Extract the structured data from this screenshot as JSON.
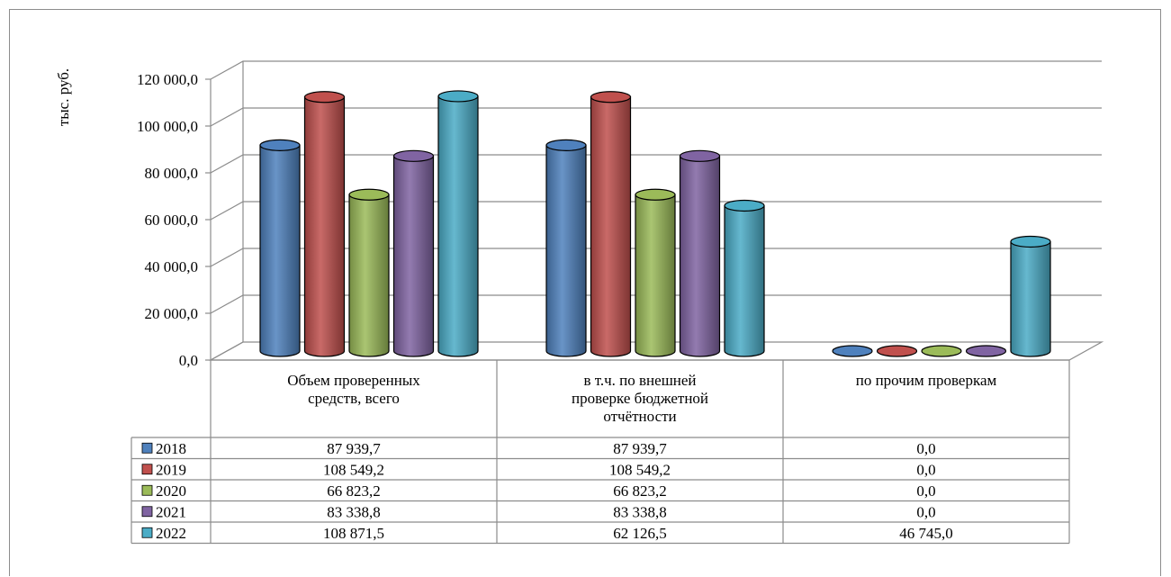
{
  "chart_data": {
    "type": "bar",
    "ylabel": "тыс. руб.",
    "ylim": [
      0,
      120000
    ],
    "y_ticks": [
      "0,0",
      "20 000,0",
      "40 000,0",
      "60 000,0",
      "80 000,0",
      "100 000,0",
      "120 000,0"
    ],
    "y_tick_values": [
      0,
      20000,
      40000,
      60000,
      80000,
      100000,
      120000
    ],
    "categories": [
      [
        "Объем проверенных",
        "средств, всего"
      ],
      [
        "в т.ч. по внешней",
        "проверке бюджетной",
        "отчётности"
      ],
      [
        "по прочим проверкам"
      ]
    ],
    "grid": true,
    "legend": "data-table",
    "series": [
      {
        "name": "2018",
        "color": "#4f81bd",
        "values": [
          87939.7,
          87939.7,
          0.0
        ],
        "labels": [
          "87 939,7",
          "87 939,7",
          "0,0"
        ]
      },
      {
        "name": "2019",
        "color": "#c0504d",
        "values": [
          108549.2,
          108549.2,
          0.0
        ],
        "labels": [
          "108 549,2",
          "108 549,2",
          "0,0"
        ]
      },
      {
        "name": "2020",
        "color": "#9bbb59",
        "values": [
          66823.2,
          66823.2,
          0.0
        ],
        "labels": [
          "66 823,2",
          "66 823,2",
          "0,0"
        ]
      },
      {
        "name": "2021",
        "color": "#8064a2",
        "values": [
          83338.8,
          83338.8,
          0.0
        ],
        "labels": [
          "83 338,8",
          "83 338,8",
          "0,0"
        ]
      },
      {
        "name": "2022",
        "color": "#4bacc6",
        "values": [
          108871.5,
          62126.5,
          46745.0
        ],
        "labels": [
          "108 871,5",
          "62 126,5",
          "46 745,0"
        ]
      }
    ]
  }
}
